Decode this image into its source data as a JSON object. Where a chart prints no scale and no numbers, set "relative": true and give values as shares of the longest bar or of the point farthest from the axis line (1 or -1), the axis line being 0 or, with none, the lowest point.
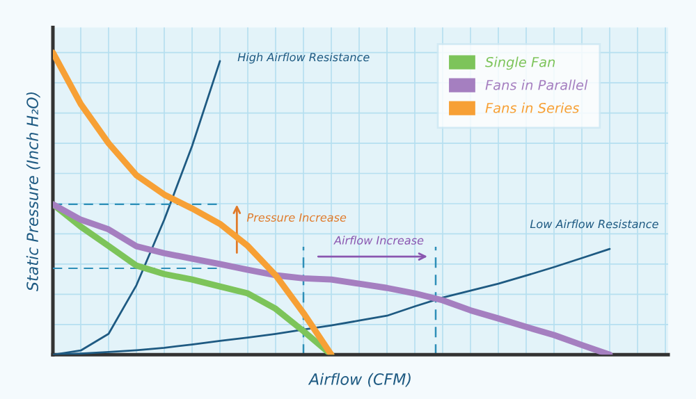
{
  "chart_data": {
    "type": "line",
    "relative": true,
    "xlabel": "Airflow (CFM)",
    "ylabel": "Static Pressure (Inch H₂O)",
    "categories": [
      null,
      null,
      null,
      null,
      null,
      null,
      null,
      null,
      null,
      null,
      null,
      null,
      null,
      null,
      null,
      null,
      null,
      null,
      null,
      null,
      null,
      null,
      null
    ],
    "series": [
      {
        "name": "Single Fan",
        "color": "#7dc45a",
        "values": [
          0.498,
          0.424,
          0.36,
          0.295,
          0.267,
          0.249,
          0.226,
          0.203,
          0.152,
          0.078,
          0,
          null,
          null,
          null,
          null,
          null,
          null,
          null,
          null,
          null,
          null,
          null,
          null
        ]
      },
      {
        "name": "Fans in Parallel",
        "color": "#a57fc0",
        "values": [
          0.498,
          0.447,
          0.415,
          0.359,
          0.336,
          0.318,
          0.3,
          0.281,
          0.263,
          0.253,
          0.249,
          0.235,
          0.221,
          0.203,
          0.18,
          0.147,
          0.12,
          0.092,
          0.065,
          0.032,
          0,
          null,
          null
        ]
      },
      {
        "name": "Fans in Series",
        "color": "#f7a035",
        "values": [
          1.0,
          0.83,
          0.7,
          0.594,
          0.53,
          0.484,
          0.433,
          0.36,
          0.263,
          0.138,
          0,
          null,
          null,
          null,
          null,
          null,
          null,
          null,
          null,
          null,
          null,
          null,
          null
        ]
      },
      {
        "color": "#1e5a82",
        "values": [
          0,
          0.014,
          0.069,
          0.23,
          0.447,
          0.691,
          0.972,
          null,
          null,
          null,
          null,
          null,
          null,
          null,
          null,
          null,
          null,
          null,
          null,
          null,
          null,
          null,
          null
        ]
      },
      {
        "color": "#1e5a82",
        "values": [
          0,
          0.004,
          0.009,
          0.015,
          0.023,
          0.034,
          0.046,
          0.057,
          0.069,
          0.083,
          0.097,
          0.113,
          0.129,
          0.16,
          0.189,
          0.212,
          0.235,
          0.262,
          0.29,
          0.32,
          0.35,
          null,
          null
        ]
      },
      {
        "color": "#2e8fb8",
        "line_style": "dashed",
        "values": [
          0.498,
          0.498,
          0.498,
          0.498,
          0.498,
          0.498,
          0.498,
          null,
          null,
          null,
          null,
          null,
          null,
          null,
          null,
          null,
          null,
          null,
          null,
          null,
          null,
          null,
          null
        ]
      },
      {
        "color": "#2e8fb8",
        "line_style": "dashed",
        "values": [
          0.286,
          0.286,
          0.286,
          0.286,
          0.286,
          0.286,
          0.286,
          null,
          null,
          null,
          null,
          null,
          null,
          null,
          null,
          null,
          null,
          null,
          null,
          null,
          null,
          null,
          null
        ]
      }
    ],
    "annotations": [
      "High Airflow Resistance",
      "Low Airflow Resistance",
      "Pressure Increase",
      "Airflow Increase"
    ],
    "legend": "top right",
    "grid": true
  }
}
